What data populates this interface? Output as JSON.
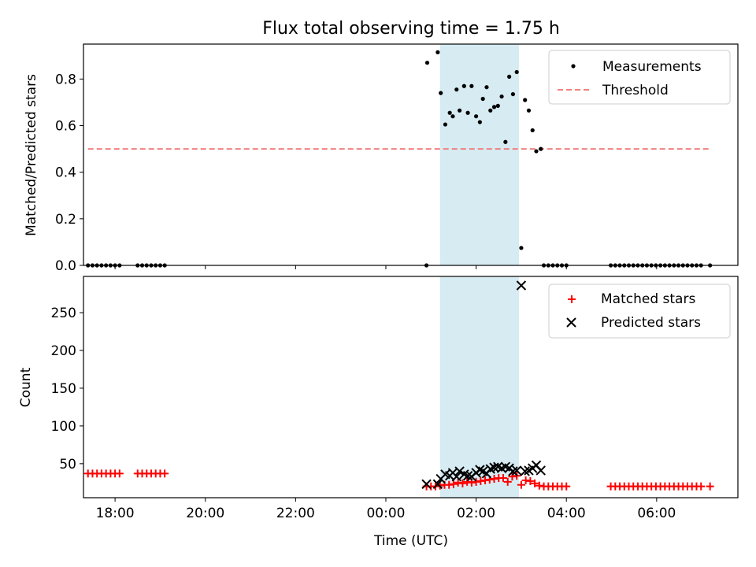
{
  "chart_data": [
    {
      "type": "scatter",
      "title": "Flux total observing time = 1.75 h",
      "ylabel": "Matched/Predicted stars",
      "xlim": [
        "17:18",
        "07:48"
      ],
      "ylim": [
        0,
        0.95
      ],
      "yticks": [
        "0.0",
        "0.2",
        "0.4",
        "0.6",
        "0.8"
      ],
      "yticks_v": [
        0,
        0.2,
        0.4,
        0.6,
        0.8
      ],
      "shaded_interval": [
        "01:12",
        "02:57"
      ],
      "legend_position": "top-right",
      "series": [
        {
          "name": "Measurements",
          "marker": "dot",
          "color": "#000000",
          "points": [
            [
              "17:24",
              0
            ],
            [
              "17:30",
              0
            ],
            [
              "17:36",
              0
            ],
            [
              "17:42",
              0
            ],
            [
              "17:48",
              0
            ],
            [
              "17:54",
              0
            ],
            [
              "18:00",
              0
            ],
            [
              "18:06",
              0
            ],
            [
              "18:30",
              0
            ],
            [
              "18:36",
              0
            ],
            [
              "18:42",
              0
            ],
            [
              "18:48",
              0
            ],
            [
              "18:54",
              0
            ],
            [
              "19:00",
              0
            ],
            [
              "19:06",
              0
            ],
            [
              "00:54",
              0
            ],
            [
              "00:55",
              0.87
            ],
            [
              "01:09",
              0.915
            ],
            [
              "01:13",
              0.74
            ],
            [
              "01:19",
              0.605
            ],
            [
              "01:25",
              0.655
            ],
            [
              "01:29",
              0.64
            ],
            [
              "01:34",
              0.755
            ],
            [
              "01:38",
              0.665
            ],
            [
              "01:44",
              0.77
            ],
            [
              "01:49",
              0.655
            ],
            [
              "01:54",
              0.77
            ],
            [
              "02:00",
              0.64
            ],
            [
              "02:05",
              0.615
            ],
            [
              "02:09",
              0.715
            ],
            [
              "02:14",
              0.765
            ],
            [
              "02:19",
              0.665
            ],
            [
              "02:24",
              0.68
            ],
            [
              "02:29",
              0.685
            ],
            [
              "02:34",
              0.725
            ],
            [
              "02:39",
              0.53
            ],
            [
              "02:44",
              0.81
            ],
            [
              "02:49",
              0.735
            ],
            [
              "02:54",
              0.83
            ],
            [
              "03:00",
              0.075
            ],
            [
              "03:05",
              0.71
            ],
            [
              "03:10",
              0.665
            ],
            [
              "03:15",
              0.58
            ],
            [
              "03:20",
              0.49
            ],
            [
              "03:26",
              0.5
            ],
            [
              "03:30",
              0
            ],
            [
              "03:36",
              0
            ],
            [
              "03:42",
              0
            ],
            [
              "03:48",
              0
            ],
            [
              "03:54",
              0
            ],
            [
              "04:00",
              0
            ],
            [
              "04:59",
              0
            ],
            [
              "05:05",
              0
            ],
            [
              "05:11",
              0
            ],
            [
              "05:17",
              0
            ],
            [
              "05:23",
              0
            ],
            [
              "05:29",
              0
            ],
            [
              "05:35",
              0
            ],
            [
              "05:41",
              0
            ],
            [
              "05:47",
              0
            ],
            [
              "05:53",
              0
            ],
            [
              "05:59",
              0
            ],
            [
              "06:05",
              0
            ],
            [
              "06:11",
              0
            ],
            [
              "06:17",
              0
            ],
            [
              "06:23",
              0
            ],
            [
              "06:29",
              0
            ],
            [
              "06:35",
              0
            ],
            [
              "06:41",
              0
            ],
            [
              "06:47",
              0
            ],
            [
              "06:53",
              0
            ],
            [
              "06:59",
              0
            ],
            [
              "07:11",
              0
            ]
          ]
        },
        {
          "name": "Threshold",
          "marker": "dashed-line",
          "color": "#f08080",
          "points": [
            [
              "17:24",
              0.5
            ],
            [
              "07:11",
              0.5
            ]
          ]
        }
      ]
    },
    {
      "type": "scatter",
      "xlabel": "Time (UTC)",
      "ylabel": "Count",
      "xlim": [
        "17:18",
        "07:48"
      ],
      "ylim": [
        5,
        298
      ],
      "yticks": [
        "50",
        "100",
        "150",
        "200",
        "250"
      ],
      "yticks_v": [
        50,
        100,
        150,
        200,
        250
      ],
      "xticks": [
        "18:00",
        "20:00",
        "22:00",
        "00:00",
        "02:00",
        "04:00",
        "06:00"
      ],
      "xticks_v": [
        "18:00",
        "20:00",
        "22:00",
        "00:00",
        "02:00",
        "04:00",
        "06:00"
      ],
      "shaded_interval": [
        "01:12",
        "02:57"
      ],
      "legend_position": "top-right",
      "series": [
        {
          "name": "Matched stars",
          "marker": "plus",
          "color": "#ff0000",
          "points": [
            [
              "17:24",
              37
            ],
            [
              "17:30",
              37
            ],
            [
              "17:36",
              37
            ],
            [
              "17:42",
              37
            ],
            [
              "17:48",
              37
            ],
            [
              "17:54",
              37
            ],
            [
              "18:00",
              37
            ],
            [
              "18:06",
              37
            ],
            [
              "18:30",
              37
            ],
            [
              "18:36",
              37
            ],
            [
              "18:42",
              37
            ],
            [
              "18:48",
              37
            ],
            [
              "18:54",
              37
            ],
            [
              "19:00",
              37
            ],
            [
              "19:06",
              37
            ],
            [
              "00:54",
              20
            ],
            [
              "01:00",
              20
            ],
            [
              "01:06",
              20
            ],
            [
              "01:12",
              21
            ],
            [
              "01:18",
              22
            ],
            [
              "01:24",
              22
            ],
            [
              "01:30",
              23
            ],
            [
              "01:36",
              25
            ],
            [
              "01:42",
              24
            ],
            [
              "01:48",
              26
            ],
            [
              "01:54",
              25
            ],
            [
              "02:00",
              26
            ],
            [
              "02:06",
              27
            ],
            [
              "02:12",
              28
            ],
            [
              "02:18",
              29
            ],
            [
              "02:24",
              30
            ],
            [
              "02:30",
              31
            ],
            [
              "02:36",
              31
            ],
            [
              "02:42",
              26
            ],
            [
              "02:48",
              33
            ],
            [
              "02:54",
              34
            ],
            [
              "03:00",
              22
            ],
            [
              "03:06",
              28
            ],
            [
              "03:12",
              27
            ],
            [
              "03:18",
              24
            ],
            [
              "03:24",
              21
            ],
            [
              "03:30",
              20
            ],
            [
              "03:36",
              20
            ],
            [
              "03:42",
              20
            ],
            [
              "03:48",
              20
            ],
            [
              "03:54",
              20
            ],
            [
              "04:00",
              20
            ],
            [
              "04:59",
              20
            ],
            [
              "05:05",
              20
            ],
            [
              "05:11",
              20
            ],
            [
              "05:17",
              20
            ],
            [
              "05:23",
              20
            ],
            [
              "05:29",
              20
            ],
            [
              "05:35",
              20
            ],
            [
              "05:41",
              20
            ],
            [
              "05:47",
              20
            ],
            [
              "05:53",
              20
            ],
            [
              "05:59",
              20
            ],
            [
              "06:05",
              20
            ],
            [
              "06:11",
              20
            ],
            [
              "06:17",
              20
            ],
            [
              "06:23",
              20
            ],
            [
              "06:29",
              20
            ],
            [
              "06:35",
              20
            ],
            [
              "06:41",
              20
            ],
            [
              "06:47",
              20
            ],
            [
              "06:53",
              20
            ],
            [
              "06:59",
              20
            ],
            [
              "07:11",
              20
            ]
          ]
        },
        {
          "name": "Predicted stars",
          "marker": "x",
          "color": "#000000",
          "points": [
            [
              "00:54",
              23
            ],
            [
              "01:09",
              23
            ],
            [
              "01:13",
              30
            ],
            [
              "01:19",
              36
            ],
            [
              "01:25",
              34
            ],
            [
              "01:29",
              38
            ],
            [
              "01:34",
              33
            ],
            [
              "01:38",
              40
            ],
            [
              "01:44",
              36
            ],
            [
              "01:49",
              34
            ],
            [
              "01:54",
              33
            ],
            [
              "02:00",
              38
            ],
            [
              "02:05",
              42
            ],
            [
              "02:09",
              40
            ],
            [
              "02:14",
              37
            ],
            [
              "02:19",
              43
            ],
            [
              "02:24",
              45
            ],
            [
              "02:29",
              46
            ],
            [
              "02:34",
              44
            ],
            [
              "02:39",
              46
            ],
            [
              "02:44",
              44
            ],
            [
              "02:49",
              40
            ],
            [
              "02:54",
              41
            ],
            [
              "03:00",
              286
            ],
            [
              "03:05",
              40
            ],
            [
              "03:10",
              41
            ],
            [
              "03:15",
              44
            ],
            [
              "03:20",
              48
            ],
            [
              "03:26",
              41
            ]
          ]
        }
      ]
    }
  ]
}
